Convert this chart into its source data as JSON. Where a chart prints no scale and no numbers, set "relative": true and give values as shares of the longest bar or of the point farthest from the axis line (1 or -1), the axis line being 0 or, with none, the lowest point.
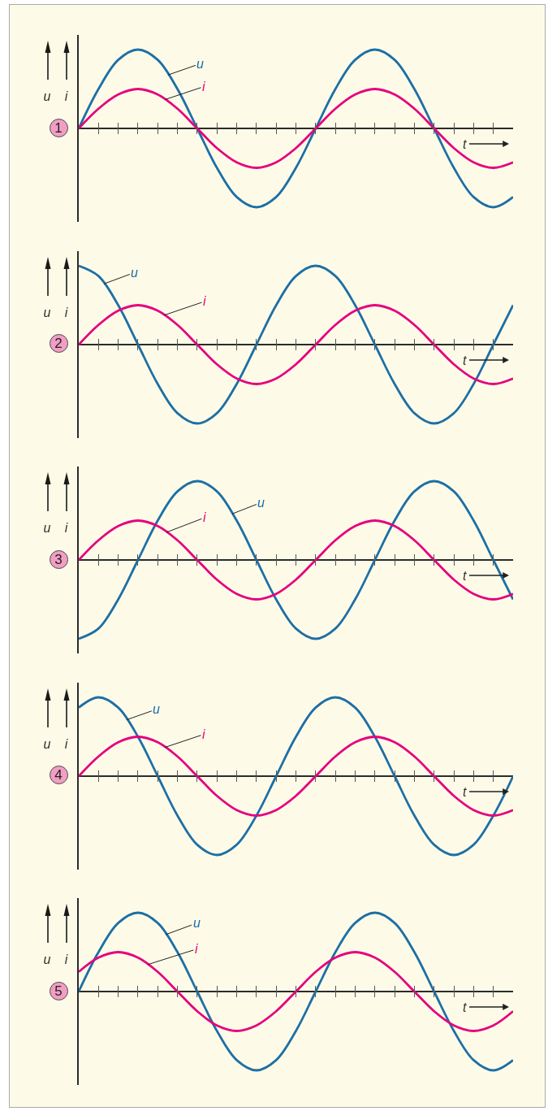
{
  "chart_data": [
    {
      "type": "line",
      "title": "1",
      "xlabel": "t",
      "ylabel": "u i",
      "relative": true,
      "categories": [
        null,
        null,
        null,
        null,
        null,
        null,
        null,
        null,
        null,
        null,
        null,
        null,
        null,
        null,
        null,
        null,
        null,
        null,
        null,
        null,
        null,
        null,
        null
      ],
      "series": [
        {
          "name": "u",
          "color": "#1d6fa5",
          "values": [
            0,
            0.5,
            0.87,
            1,
            0.87,
            0.5,
            0,
            -0.5,
            -0.87,
            -1,
            -0.87,
            -0.5,
            0,
            0.5,
            0.87,
            1,
            0.87,
            0.5,
            0,
            -0.5,
            -0.87,
            -1,
            -0.87
          ]
        },
        {
          "name": "i",
          "color": "#e5007e",
          "values": [
            0,
            0.25,
            0.43,
            0.5,
            0.43,
            0.25,
            0,
            -0.25,
            -0.43,
            -0.5,
            -0.43,
            -0.25,
            0,
            0.25,
            0.43,
            0.5,
            0.43,
            0.25,
            0,
            -0.25,
            -0.43,
            -0.5,
            -0.43
          ]
        }
      ]
    },
    {
      "type": "line",
      "title": "2",
      "xlabel": "t",
      "ylabel": "u i",
      "relative": true,
      "categories": [
        null,
        null,
        null,
        null,
        null,
        null,
        null,
        null,
        null,
        null,
        null,
        null,
        null,
        null,
        null,
        null,
        null,
        null,
        null,
        null,
        null,
        null,
        null
      ],
      "series": [
        {
          "name": "u",
          "color": "#1d6fa5",
          "values": [
            1,
            0.87,
            0.5,
            0,
            -0.5,
            -0.87,
            -1,
            -0.87,
            -0.5,
            0,
            0.5,
            0.87,
            1,
            0.87,
            0.5,
            0,
            -0.5,
            -0.87,
            -1,
            -0.87,
            -0.5,
            0,
            0.5
          ]
        },
        {
          "name": "i",
          "color": "#e5007e",
          "values": [
            0,
            0.25,
            0.43,
            0.5,
            0.43,
            0.25,
            0,
            -0.25,
            -0.43,
            -0.5,
            -0.43,
            -0.25,
            0,
            0.25,
            0.43,
            0.5,
            0.43,
            0.25,
            0,
            -0.25,
            -0.43,
            -0.5,
            -0.43
          ]
        }
      ]
    },
    {
      "type": "line",
      "title": "3",
      "xlabel": "t",
      "ylabel": "u i",
      "relative": true,
      "categories": [
        null,
        null,
        null,
        null,
        null,
        null,
        null,
        null,
        null,
        null,
        null,
        null,
        null,
        null,
        null,
        null,
        null,
        null,
        null,
        null,
        null,
        null,
        null
      ],
      "series": [
        {
          "name": "u",
          "color": "#1d6fa5",
          "values": [
            -1,
            -0.87,
            -0.5,
            0,
            0.5,
            0.87,
            1,
            0.87,
            0.5,
            0,
            -0.5,
            -0.87,
            -1,
            -0.87,
            -0.5,
            0,
            0.5,
            0.87,
            1,
            0.87,
            0.5,
            0,
            -0.5
          ]
        },
        {
          "name": "i",
          "color": "#e5007e",
          "values": [
            0,
            0.25,
            0.43,
            0.5,
            0.43,
            0.25,
            0,
            -0.25,
            -0.43,
            -0.5,
            -0.43,
            -0.25,
            0,
            0.25,
            0.43,
            0.5,
            0.43,
            0.25,
            0,
            -0.25,
            -0.43,
            -0.5,
            -0.43
          ]
        }
      ]
    },
    {
      "type": "line",
      "title": "4",
      "xlabel": "t",
      "ylabel": "u i",
      "relative": true,
      "categories": [
        null,
        null,
        null,
        null,
        null,
        null,
        null,
        null,
        null,
        null,
        null,
        null,
        null,
        null,
        null,
        null,
        null,
        null,
        null,
        null,
        null,
        null,
        null
      ],
      "series": [
        {
          "name": "u",
          "color": "#1d6fa5",
          "values": [
            0.87,
            1,
            0.87,
            0.5,
            0,
            -0.5,
            -0.87,
            -1,
            -0.87,
            -0.5,
            0,
            0.5,
            0.87,
            1,
            0.87,
            0.5,
            0,
            -0.5,
            -0.87,
            -1,
            -0.87,
            -0.5,
            0
          ]
        },
        {
          "name": "i",
          "color": "#e5007e",
          "values": [
            0,
            0.25,
            0.43,
            0.5,
            0.43,
            0.25,
            0,
            -0.25,
            -0.43,
            -0.5,
            -0.43,
            -0.25,
            0,
            0.25,
            0.43,
            0.5,
            0.43,
            0.25,
            0,
            -0.25,
            -0.43,
            -0.5,
            -0.43
          ]
        }
      ]
    },
    {
      "type": "line",
      "title": "5",
      "xlabel": "t",
      "ylabel": "u i",
      "relative": true,
      "categories": [
        null,
        null,
        null,
        null,
        null,
        null,
        null,
        null,
        null,
        null,
        null,
        null,
        null,
        null,
        null,
        null,
        null,
        null,
        null,
        null,
        null,
        null,
        null
      ],
      "series": [
        {
          "name": "u",
          "color": "#1d6fa5",
          "values": [
            0,
            0.5,
            0.87,
            1,
            0.87,
            0.5,
            0,
            -0.5,
            -0.87,
            -1,
            -0.87,
            -0.5,
            0,
            0.5,
            0.87,
            1,
            0.87,
            0.5,
            0,
            -0.5,
            -0.87,
            -1,
            -0.87
          ]
        },
        {
          "name": "i",
          "color": "#e5007e",
          "values": [
            0.25,
            0.43,
            0.5,
            0.43,
            0.25,
            0,
            -0.25,
            -0.43,
            -0.5,
            -0.43,
            -0.25,
            0,
            0.25,
            0.43,
            0.5,
            0.43,
            0.25,
            0,
            -0.25,
            -0.43,
            -0.5,
            -0.43,
            -0.25
          ]
        }
      ]
    }
  ]
}
